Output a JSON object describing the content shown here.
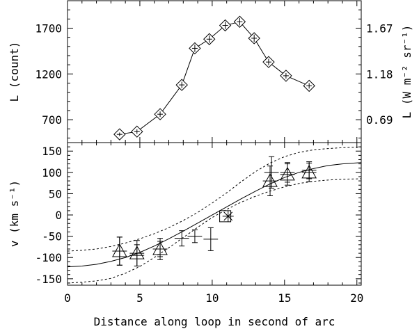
{
  "chart_data": [
    {
      "id": "top",
      "type": "line",
      "ylabel": "L (count)",
      "ylabel_right": "L (W m⁻² sr⁻¹)",
      "yticks_left": [
        700,
        1200,
        1700
      ],
      "yticks_right": [
        "0.69",
        "1.18",
        "1.67"
      ],
      "ylim": [
        450,
        2000
      ],
      "xlim": [
        0,
        20.3
      ],
      "series": [
        {
          "marker": "diamond",
          "x": [
            3.6,
            4.8,
            6.4,
            7.9,
            8.8,
            9.8,
            10.9,
            11.9,
            12.9,
            13.9,
            15.1,
            16.7
          ],
          "y": [
            540,
            570,
            760,
            1080,
            1480,
            1580,
            1730,
            1770,
            1590,
            1330,
            1180,
            1070
          ],
          "yerr": [
            20,
            25,
            30,
            35,
            40,
            40,
            40,
            40,
            40,
            35,
            30,
            30
          ]
        }
      ]
    },
    {
      "id": "bottom",
      "type": "scatter",
      "xlabel": "Distance along loop in second of arc",
      "ylabel": "v (km s⁻¹)",
      "xticks": [
        0,
        5,
        10,
        15,
        20
      ],
      "yticks": [
        -150,
        -100,
        -50,
        0,
        50,
        100,
        150
      ],
      "xlim": [
        0,
        20.3
      ],
      "ylim": [
        -165,
        170
      ],
      "series": [
        {
          "marker": "triangle",
          "x": [
            3.6,
            4.8,
            6.4,
            14.0,
            15.2,
            16.7
          ],
          "y": [
            -85,
            -90,
            -80,
            80,
            95,
            100
          ],
          "yerr": [
            33,
            30,
            25,
            35,
            25,
            22
          ],
          "xerr": [
            0.5,
            0.5,
            0.5,
            0.5,
            0.5,
            0.5
          ]
        },
        {
          "marker": "plus",
          "x": [
            3.6,
            4.8,
            6.4,
            7.9,
            8.8,
            9.9,
            14.1,
            15.2,
            16.7
          ],
          "y": [
            -85,
            -95,
            -80,
            -55,
            -50,
            -57,
            100,
            100,
            105
          ],
          "yerr": [
            33,
            25,
            18,
            18,
            15,
            27,
            37,
            23,
            20
          ],
          "xerr": [
            0.5,
            0.5,
            0.5,
            0.5,
            0.5,
            0.5,
            0.5,
            0.5,
            0.5
          ]
        },
        {
          "marker": "square",
          "x": [
            10.9
          ],
          "y": [
            -3
          ]
        },
        {
          "marker": "asterisk",
          "x": [
            11.1
          ],
          "y": [
            -3
          ]
        }
      ],
      "fit_curve": {
        "x": [
          0,
          1,
          2,
          3,
          4,
          5,
          6,
          7,
          8,
          9,
          10,
          11,
          12,
          13,
          14,
          15,
          16,
          17,
          18,
          19,
          20.3
        ],
        "y": [
          -122,
          -120,
          -116,
          -109,
          -100,
          -88,
          -73,
          -56,
          -38,
          -19,
          0,
          19,
          38,
          56,
          73,
          88,
          100,
          109,
          116,
          120,
          123
        ]
      },
      "upper_envelope": {
        "x": [
          0,
          1,
          2,
          3,
          4,
          5,
          6,
          7,
          8,
          9,
          10,
          11,
          12,
          13,
          14,
          15,
          16,
          17,
          18,
          19,
          20.3
        ],
        "y": [
          -85,
          -83,
          -80,
          -74,
          -66,
          -56,
          -44,
          -30,
          -13,
          6,
          28,
          52,
          78,
          102,
          122,
          137,
          147,
          153,
          156,
          158,
          160
        ]
      },
      "lower_envelope": {
        "x": [
          0,
          1,
          2,
          3,
          4,
          5,
          6,
          7,
          8,
          9,
          10,
          11,
          12,
          13,
          14,
          15,
          16,
          17,
          18,
          19,
          20.3
        ],
        "y": [
          -160,
          -158,
          -155,
          -149,
          -137,
          -121,
          -100,
          -77,
          -53,
          -29,
          -6,
          13,
          30,
          44,
          56,
          66,
          74,
          79,
          82,
          84,
          85
        ]
      }
    }
  ]
}
